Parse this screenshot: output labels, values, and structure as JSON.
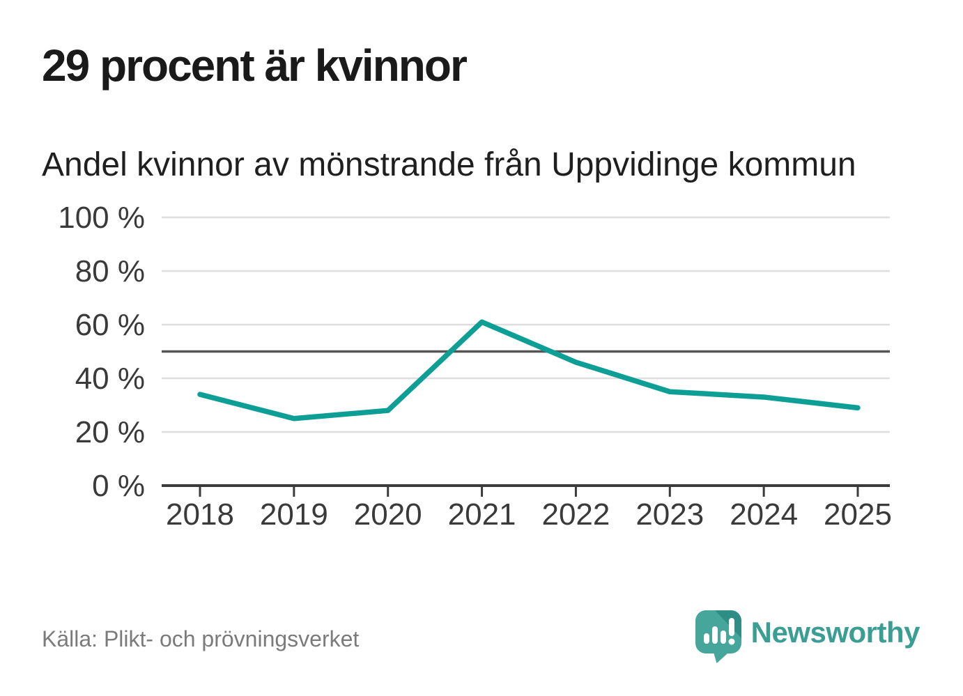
{
  "header": {
    "title": "29 procent är kvinnor",
    "subtitle": "Andel kvinnor av mönstrande från Uppvidinge kommun"
  },
  "footer": {
    "source": "Källa: Plikt- och prövningsverket",
    "brand": "Newsworthy",
    "brand_icon": "bar-chart-speech-bubble-icon"
  },
  "colors": {
    "line": "#0d9f96",
    "reference_line": "#555555",
    "grid": "#dedede",
    "axis": "#3b3b3b",
    "tick_label": "#3a3a3a",
    "title": "#1a1a1a",
    "subtitle": "#1f1f1f",
    "source": "#7b7b7b",
    "brand_teal": "#3a9e95",
    "icon_teal": "#46a69b",
    "icon_teal_dark": "#2e8d85"
  },
  "chart_data": {
    "type": "line",
    "x": [
      2018,
      2019,
      2020,
      2021,
      2022,
      2023,
      2024,
      2025
    ],
    "series": [
      {
        "name": "Andel kvinnor av mönstrande",
        "values": [
          34,
          25,
          28,
          61,
          46,
          35,
          33,
          29
        ]
      }
    ],
    "reference_line": {
      "value": 50,
      "label": ""
    },
    "ylim": [
      0,
      100
    ],
    "yticks": [
      0,
      20,
      40,
      60,
      80,
      100
    ],
    "ytick_format": "{v} %",
    "xlabel": "",
    "ylabel": "",
    "grid": "horizontal",
    "legend": "none",
    "title": "29 procent är kvinnor",
    "subtitle": "Andel kvinnor av mönstrande från Uppvidinge kommun"
  }
}
